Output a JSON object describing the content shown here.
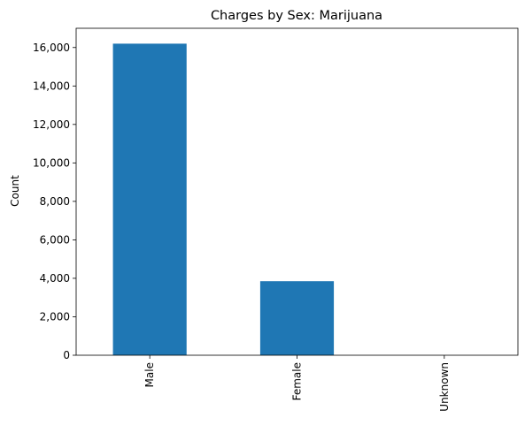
{
  "chart_data": {
    "type": "bar",
    "title": "Charges by Sex: Marijuana",
    "xlabel": "",
    "ylabel": "Count",
    "categories": [
      "Male",
      "Female",
      "Unknown"
    ],
    "values": [
      16200,
      3850,
      0
    ],
    "ylim": [
      0,
      17000
    ],
    "yticks": [
      0,
      2000,
      4000,
      6000,
      8000,
      10000,
      12000,
      14000,
      16000
    ],
    "ytick_labels": [
      "0",
      "2,000",
      "4,000",
      "6,000",
      "8,000",
      "10,000",
      "12,000",
      "14,000",
      "16,000"
    ],
    "x_tick_rotation": "vertical",
    "grid": false,
    "legend": "none",
    "colors": {
      "bar": "#1f77b4",
      "axis": "#000000"
    }
  }
}
